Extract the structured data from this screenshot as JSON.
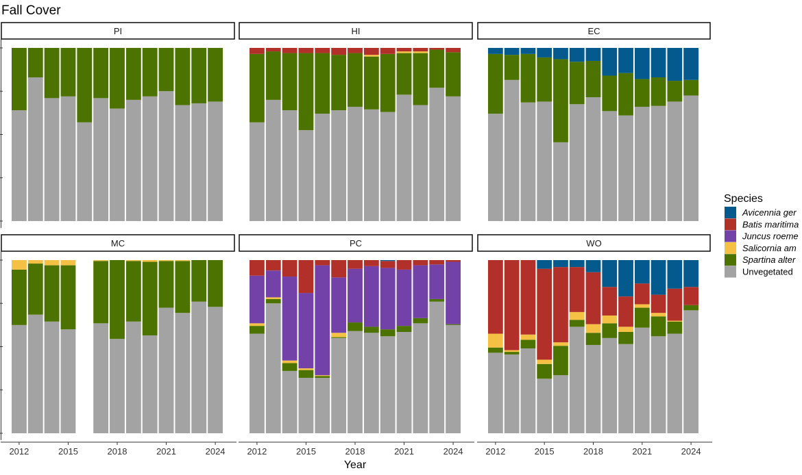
{
  "chart_data": {
    "type": "bar",
    "stacked": true,
    "title": "Fall Cover",
    "xlabel": "Year",
    "ylabel": "",
    "ylim": [
      0,
      100
    ],
    "y_tick_labels_shown": false,
    "x_ticks": [
      2012,
      2015,
      2018,
      2021,
      2024
    ],
    "x": [
      2012,
      2013,
      2014,
      2015,
      2016,
      2017,
      2018,
      2019,
      2020,
      2021,
      2022,
      2023,
      2024
    ],
    "legend": {
      "title": "Species",
      "placement": "right",
      "entries": [
        {
          "key": "avicennia",
          "label": "Avicennia germinans",
          "visible_label": "Avicennia ger",
          "color": "#045a8d",
          "italic": true
        },
        {
          "key": "batis",
          "label": "Batis maritima",
          "visible_label": "Batis maritima",
          "color": "#b2302a",
          "italic": true
        },
        {
          "key": "juncus",
          "label": "Juncus roemerianus",
          "visible_label": "Juncus roeme",
          "color": "#7242a8",
          "italic": true
        },
        {
          "key": "salicornia",
          "label": "Salicornia ambigua",
          "visible_label": "Salicornia am",
          "color": "#f4c145",
          "italic": true
        },
        {
          "key": "spartina",
          "label": "Spartina alterniflora",
          "visible_label": "Spartina alter",
          "color": "#4c7200",
          "italic": true
        },
        {
          "key": "unveg",
          "label": "Unvegetated",
          "visible_label": "Unvegetated",
          "color": "#a3a3a3",
          "italic": false
        }
      ]
    },
    "stack_order_bottom_to_top": [
      "unveg",
      "spartina",
      "salicornia",
      "juncus",
      "batis",
      "avicennia"
    ],
    "panels": [
      {
        "name": "PI",
        "series": {
          "unveg": [
            64,
            83,
            71,
            72,
            57,
            71,
            65,
            70,
            72,
            75,
            67,
            68,
            69
          ],
          "spartina": [
            36,
            17,
            29,
            28,
            43,
            29,
            35,
            30,
            28,
            25,
            33,
            32,
            31
          ],
          "salicornia": [
            0,
            0,
            0,
            0,
            0,
            0,
            0,
            0,
            0,
            0,
            0,
            0,
            0
          ],
          "juncus": [
            0,
            0,
            0,
            0,
            0,
            0,
            0,
            0,
            0,
            0,
            0,
            0,
            0
          ],
          "batis": [
            0,
            0,
            0,
            0,
            0,
            0,
            0,
            0,
            0,
            0,
            0,
            0,
            0
          ],
          "avicennia": [
            0,
            0,
            0,
            0,
            0,
            0,
            0,
            0,
            0,
            0,
            0,
            0,
            0
          ]
        }
      },
      {
        "name": "HI",
        "series": {
          "unveg": [
            57,
            70,
            64,
            52.5,
            62,
            64,
            66,
            64.5,
            63,
            73,
            67,
            77,
            72
          ],
          "spartina": [
            39.5,
            28,
            33,
            44.5,
            35,
            32,
            31,
            30.5,
            33.5,
            24,
            30,
            22,
            25.5
          ],
          "salicornia": [
            0,
            0,
            0,
            0,
            0,
            0,
            0,
            1,
            0,
            1,
            1,
            0,
            0
          ],
          "juncus": [
            0,
            0,
            0,
            0,
            0,
            0,
            0,
            0,
            0,
            0,
            0,
            0,
            0
          ],
          "batis": [
            3.5,
            2,
            3,
            3,
            3,
            4,
            3,
            4,
            3.5,
            2,
            2,
            1,
            2.5
          ],
          "avicennia": [
            0,
            0,
            0,
            0,
            0,
            0,
            0,
            0,
            0,
            0,
            0,
            0,
            0
          ]
        }
      },
      {
        "name": "EC",
        "series": {
          "unveg": [
            62,
            81.5,
            68.5,
            69,
            45.5,
            67.5,
            71.5,
            63.5,
            61,
            66,
            66.5,
            69,
            72.5
          ],
          "spartina": [
            34.5,
            14.5,
            28,
            25.5,
            48,
            24.5,
            21,
            20.5,
            24.5,
            16,
            16.5,
            12,
            9
          ],
          "salicornia": [
            0,
            0,
            0,
            0,
            0,
            0,
            0,
            0,
            0,
            0,
            0,
            0,
            0
          ],
          "juncus": [
            0,
            0,
            0,
            0,
            0,
            0,
            0,
            0,
            0,
            0,
            0,
            0,
            0
          ],
          "batis": [
            0,
            0,
            0,
            0,
            0,
            0,
            0,
            0,
            0,
            0,
            0,
            0,
            0
          ],
          "avicennia": [
            3.5,
            4,
            3.5,
            5.5,
            6.5,
            8,
            7.5,
            16,
            14.5,
            18,
            17,
            19,
            18.5
          ]
        }
      },
      {
        "name": "MC",
        "series": {
          "unveg": [
            62.5,
            68.5,
            64.5,
            60,
            null,
            63.5,
            54.5,
            64.5,
            56.5,
            72.5,
            69.5,
            76,
            73
          ],
          "spartina": [
            32,
            29.5,
            32.5,
            37,
            null,
            36,
            45.5,
            35,
            42.5,
            27,
            30,
            24,
            27
          ],
          "salicornia": [
            5.5,
            2,
            3,
            3,
            null,
            0.5,
            0,
            0.5,
            1,
            0.5,
            0.5,
            0,
            0
          ],
          "juncus": [
            0,
            0,
            0,
            0,
            null,
            0,
            0,
            0,
            0,
            0,
            0,
            0,
            0
          ],
          "batis": [
            0,
            0,
            0,
            0,
            null,
            0,
            0,
            0,
            0,
            0,
            0,
            0,
            0
          ],
          "avicennia": [
            0,
            0,
            0,
            0,
            null,
            0,
            0,
            0,
            0,
            0,
            0,
            0,
            0
          ]
        }
      },
      {
        "name": "PC",
        "series": {
          "unveg": [
            57.5,
            75,
            36,
            32,
            32,
            55,
            59,
            58,
            56,
            58.5,
            63.5,
            76,
            62.5
          ],
          "spartina": [
            4.5,
            2.5,
            4.5,
            4.5,
            1,
            0.5,
            5,
            3.5,
            4,
            3.5,
            3,
            1.5,
            0.5
          ],
          "salicornia": [
            1.5,
            1,
            1.5,
            1,
            0.5,
            2.5,
            0,
            0,
            0,
            0,
            0,
            0,
            0
          ],
          "juncus": [
            27.5,
            15.5,
            48.5,
            43.5,
            63.5,
            32,
            31,
            35,
            35.5,
            32.5,
            30.5,
            20,
            36
          ],
          "batis": [
            9,
            6,
            9.5,
            19,
            3,
            10,
            5,
            3.5,
            4,
            5.5,
            3,
            2.5,
            1
          ],
          "avicennia": [
            0,
            0,
            0,
            0,
            0,
            0,
            0,
            0,
            0.5,
            0,
            0,
            0,
            0
          ]
        }
      },
      {
        "name": "WO",
        "series": {
          "unveg": [
            46.5,
            45.5,
            49,
            31.5,
            33.5,
            61.5,
            51,
            55,
            51.5,
            61,
            56,
            57.5,
            71
          ],
          "spartina": [
            3,
            1.5,
            5,
            8.5,
            17,
            4,
            7,
            8.5,
            7,
            11.5,
            11.5,
            7,
            3
          ],
          "salicornia": [
            8,
            1,
            3,
            2.5,
            2,
            4.5,
            5,
            4.5,
            3,
            2,
            2,
            0.5,
            0
          ],
          "juncus": [
            0,
            0,
            0,
            0,
            0,
            0,
            0,
            0,
            0,
            0,
            0,
            0,
            0
          ],
          "batis": [
            42.5,
            52,
            43,
            52.5,
            43.5,
            26,
            30,
            16.5,
            17.5,
            12,
            10.5,
            18.5,
            10.5
          ],
          "avicennia": [
            0,
            0,
            0,
            5,
            4,
            4,
            7,
            15.5,
            21,
            13.5,
            20,
            16.5,
            15.5
          ]
        }
      }
    ]
  }
}
